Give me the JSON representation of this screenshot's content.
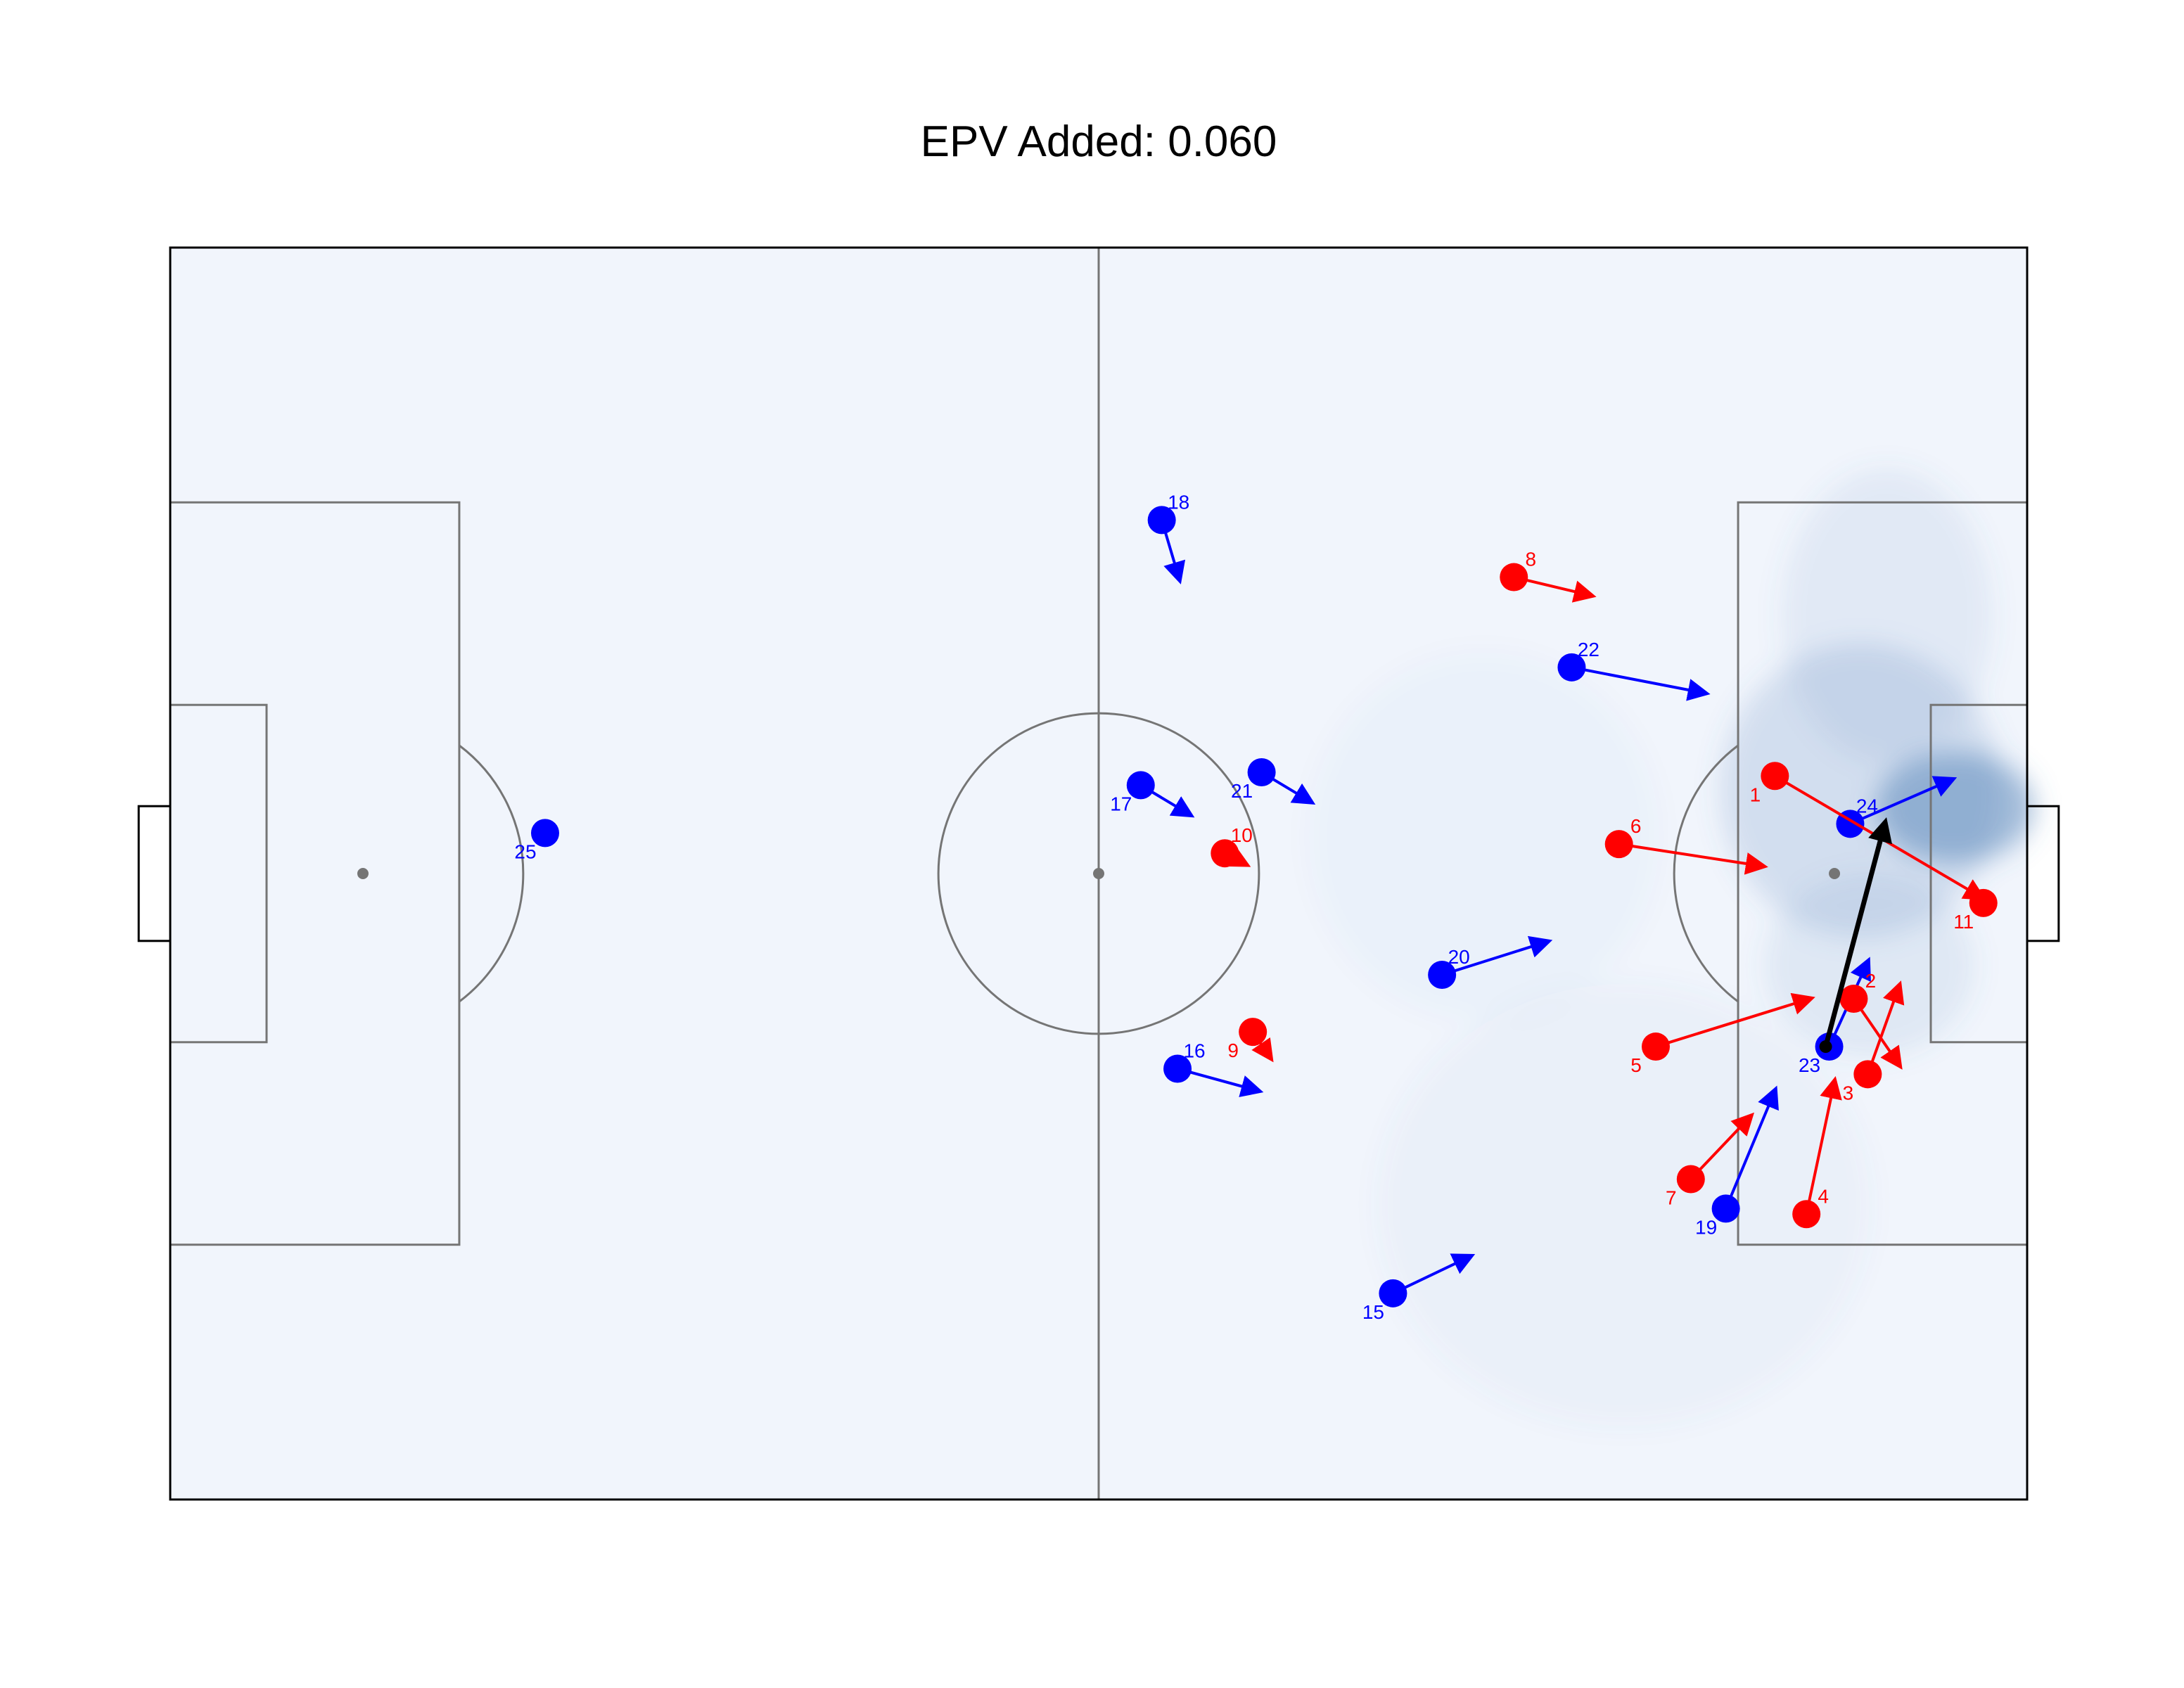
{
  "chart_data": {
    "type": "scatter",
    "title": "EPV Added: 0.060",
    "pitch": {
      "length": 106,
      "width": 68,
      "line_color": "#757575",
      "field_color": "#f1f5fc"
    },
    "xlim": [
      -53,
      53
    ],
    "ylim": [
      -34,
      34
    ],
    "colors": {
      "attack": "#0000ff",
      "defense": "#ff0000",
      "pass": "#000000",
      "surface_high": "#4f7fb5"
    },
    "series": [
      {
        "team": "attack",
        "color": "#0000ff",
        "players": [
          {
            "label": "15",
            "x": 16.8,
            "y": -22.8,
            "vx": 2.2,
            "vy": 1.0
          },
          {
            "label": "16",
            "x": 4.5,
            "y": -10.6,
            "vx": 2.3,
            "vy": -0.6
          },
          {
            "label": "17",
            "x": 2.4,
            "y": 4.8,
            "vx": 1.4,
            "vy": -0.8
          },
          {
            "label": "18",
            "x": 3.6,
            "y": 19.2,
            "vx": 0.5,
            "vy": -1.6
          },
          {
            "label": "19",
            "x": 35.8,
            "y": -18.2,
            "vx": 1.4,
            "vy": 3.2
          },
          {
            "label": "20",
            "x": 19.6,
            "y": -5.5,
            "vx": 3.0,
            "vy": 0.9
          },
          {
            "label": "21",
            "x": 9.3,
            "y": 5.5,
            "vx": 1.4,
            "vy": -0.8
          },
          {
            "label": "22",
            "x": 27.0,
            "y": 11.2,
            "vx": 3.8,
            "vy": -0.7
          },
          {
            "label": "23",
            "x": 41.7,
            "y": -9.4,
            "vx": 1.1,
            "vy": 2.3
          },
          {
            "label": "24",
            "x": 42.9,
            "y": 2.7,
            "vx": 2.9,
            "vy": 1.2
          },
          {
            "label": "25",
            "x": -31.6,
            "y": 2.2,
            "vx": 0,
            "vy": 0
          }
        ]
      },
      {
        "team": "defense",
        "color": "#ff0000",
        "players": [
          {
            "label": "1",
            "x": 38.6,
            "y": 5.3,
            "vx": 5.9,
            "vy": -3.3
          },
          {
            "label": "2",
            "x": 43.1,
            "y": -6.8,
            "vx": 1.3,
            "vy": -1.8
          },
          {
            "label": "3",
            "x": 43.9,
            "y": -10.9,
            "vx": 0.9,
            "vy": 2.4
          },
          {
            "label": "4",
            "x": 40.4,
            "y": -18.5,
            "vx": 0.8,
            "vy": 3.6
          },
          {
            "label": "5",
            "x": 31.8,
            "y": -9.4,
            "vx": 4.4,
            "vy": 1.3
          },
          {
            "label": "6",
            "x": 29.7,
            "y": 1.6,
            "vx": 4.1,
            "vy": -0.6
          },
          {
            "label": "7",
            "x": 33.8,
            "y": -16.6,
            "vx": 1.7,
            "vy": 1.7
          },
          {
            "label": "8",
            "x": 23.7,
            "y": 16.1,
            "vx": 2.2,
            "vy": -0.5
          },
          {
            "label": "9",
            "x": 8.8,
            "y": -8.6,
            "vx": 0.5,
            "vy": -0.7
          },
          {
            "label": "10",
            "x": 7.2,
            "y": 1.1,
            "vx": 0.6,
            "vy": -0.3
          },
          {
            "label": "11",
            "x": 50.5,
            "y": -1.6,
            "vx": 0,
            "vy": 0
          }
        ]
      }
    ],
    "ball": {
      "x": 41.5,
      "y": -9.4
    },
    "pass": {
      "start": [
        41.5,
        -9.4
      ],
      "end": [
        44.9,
        2.8
      ]
    },
    "surface": {
      "type": "heatmap",
      "description_free": true,
      "blobs": [
        {
          "x": 48.9,
          "y": 3.6,
          "sx": 4.5,
          "sy": 3.0,
          "v": 0.9
        },
        {
          "x": 43.5,
          "y": 4.5,
          "sx": 8.0,
          "sy": 8.0,
          "v": 0.35
        },
        {
          "x": 44.0,
          "y": -5.0,
          "sx": 6.0,
          "sy": 5.0,
          "v": 0.2
        },
        {
          "x": 45.0,
          "y": 14.0,
          "sx": 6.0,
          "sy": 8.0,
          "v": 0.18
        },
        {
          "x": 30.0,
          "y": -18.0,
          "sx": 14.0,
          "sy": 12.0,
          "v": 0.08
        },
        {
          "x": 22.0,
          "y": 2.0,
          "sx": 10.0,
          "sy": 10.0,
          "v": 0.05
        }
      ]
    }
  }
}
